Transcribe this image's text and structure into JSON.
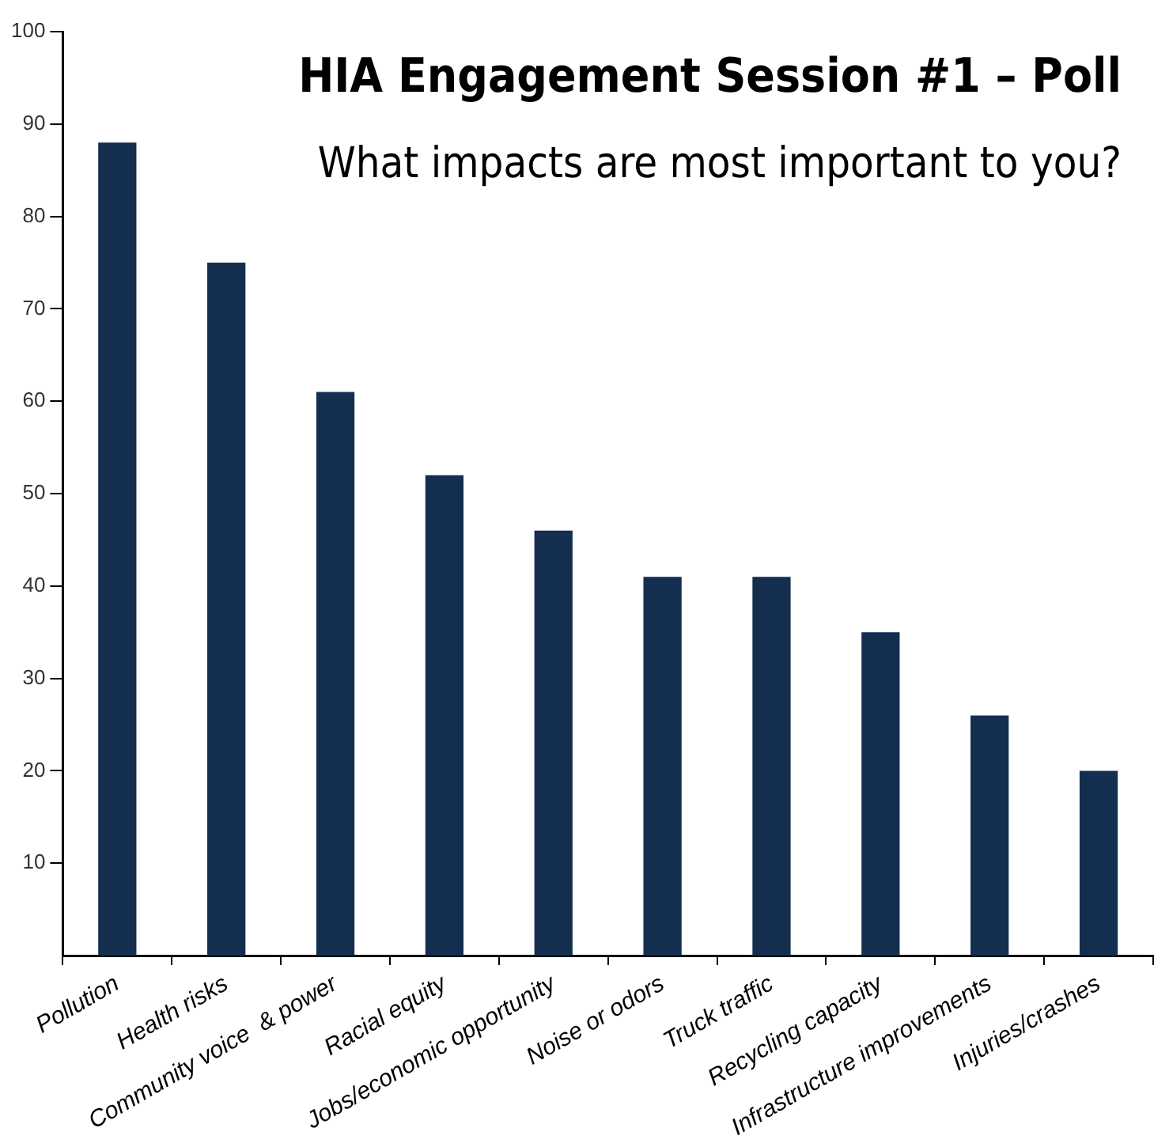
{
  "chart_data": {
    "type": "bar",
    "title": "HIA Engagement Session #1 – Poll",
    "subtitle": "What impacts are most important to you?",
    "categories": [
      "Pollution",
      "Health risks",
      "Community voice  & power",
      "Racial equity",
      "Jobs/economic opportunity",
      "Noise or odors",
      "Truck traffic",
      "Recycling capacity",
      "Infrastructure improvements",
      "Injuries/crashes"
    ],
    "values": [
      88,
      75,
      61,
      52,
      46,
      41,
      41,
      35,
      26,
      20
    ],
    "color": "#132e4f",
    "ylim": [
      0,
      100
    ],
    "yticks": [
      10,
      20,
      30,
      40,
      50,
      60,
      70,
      80,
      90,
      100
    ],
    "grid": false,
    "legend": false
  }
}
